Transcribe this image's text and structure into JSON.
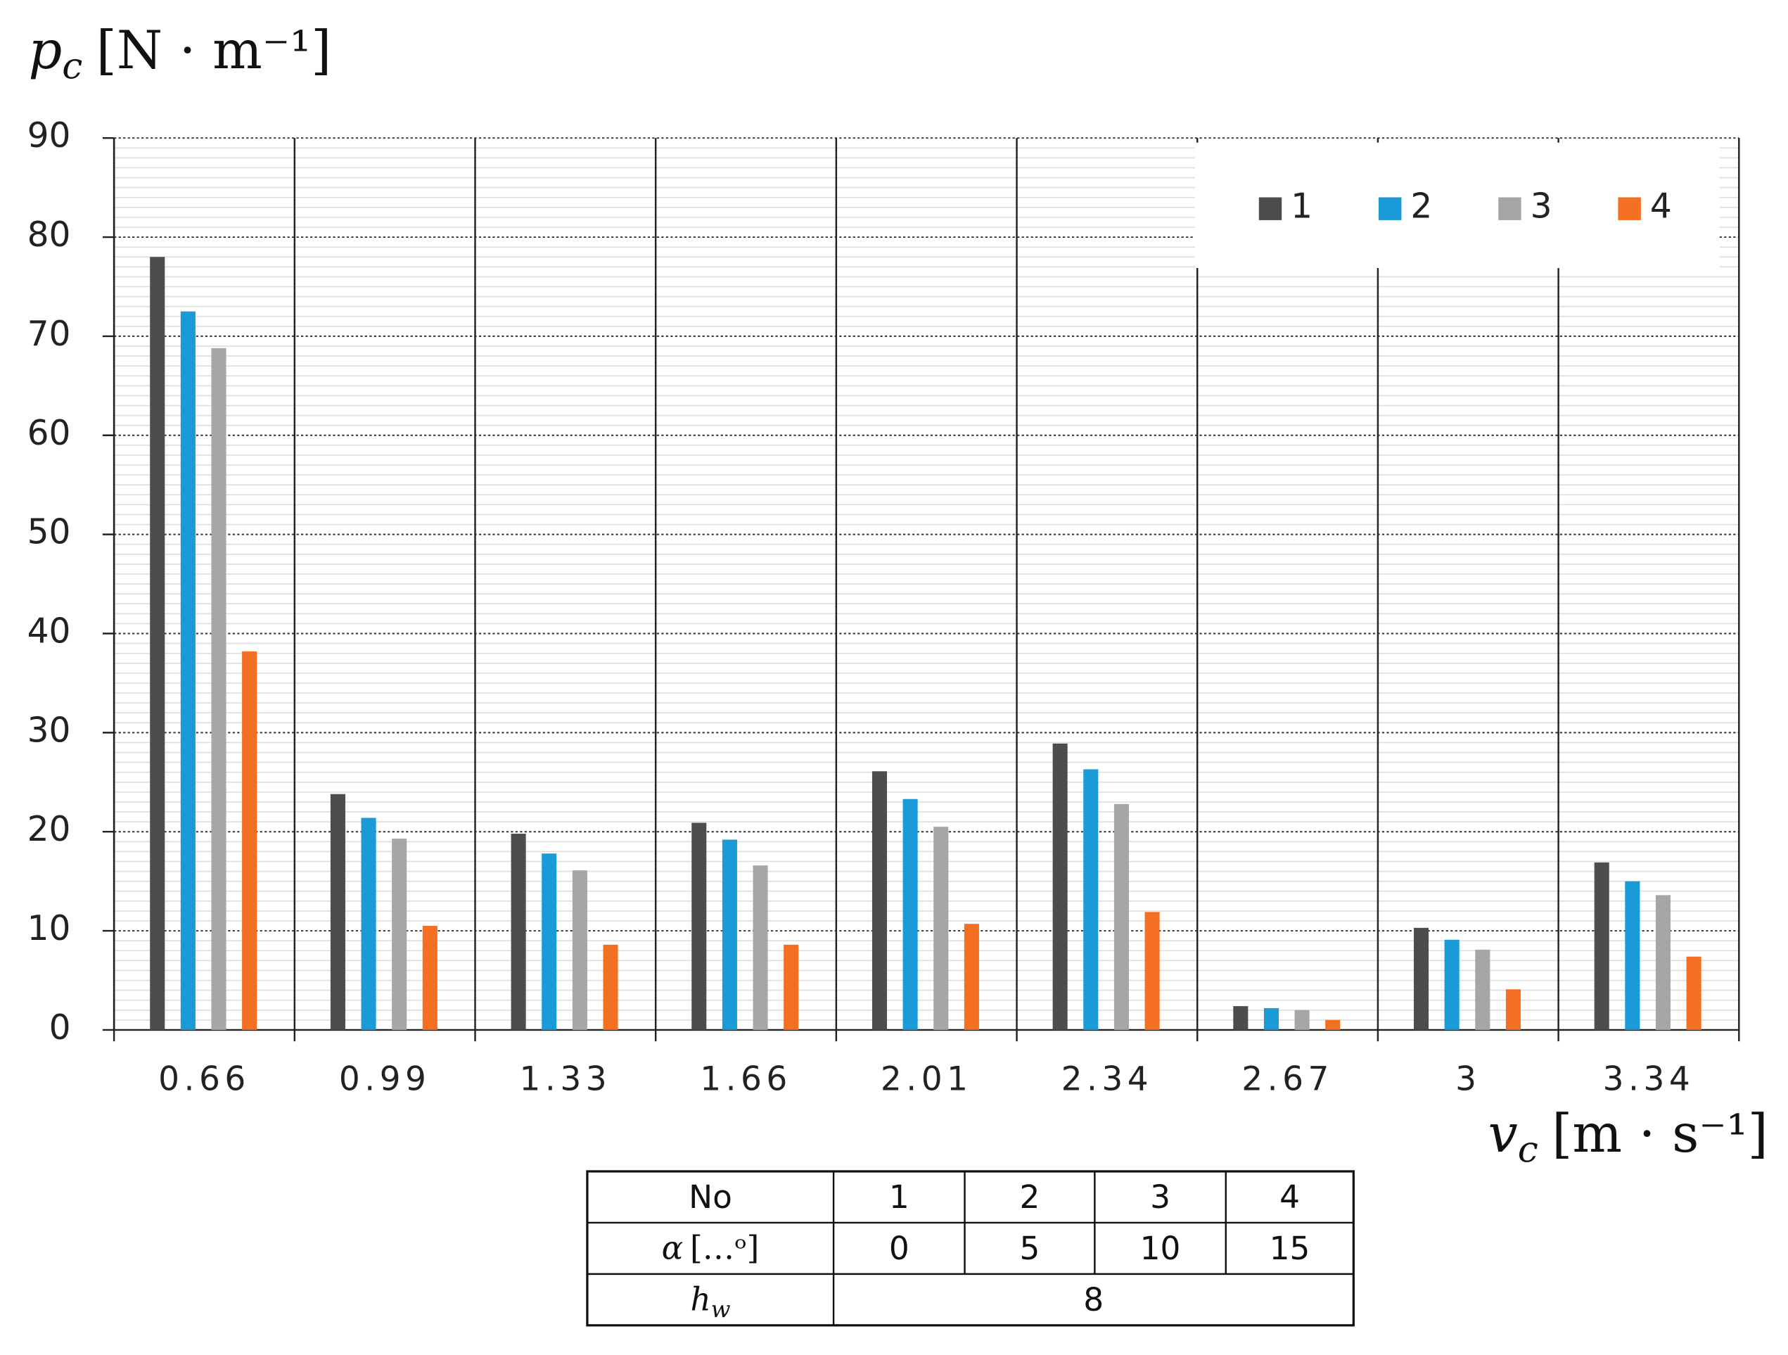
{
  "chart_data": {
    "type": "bar",
    "y_label": {
      "symbol": "p",
      "subscript": "c",
      "unit": "[N · m⁻¹]"
    },
    "x_label": {
      "symbol": "v",
      "subscript": "c",
      "unit": "[m · s⁻¹]"
    },
    "categories": [
      "0.66",
      "0.99",
      "1.33",
      "1.66",
      "2.01",
      "2.34",
      "2.67",
      "3",
      "3.34"
    ],
    "series": [
      {
        "name": "1",
        "color": "#4d4d4d",
        "values": [
          78,
          23.8,
          19.8,
          20.9,
          26.1,
          28.9,
          2.4,
          10.3,
          16.9
        ]
      },
      {
        "name": "2",
        "color": "#1a9ad6",
        "values": [
          72.5,
          21.4,
          17.8,
          19.2,
          23.3,
          26.3,
          2.2,
          9.1,
          15.0
        ]
      },
      {
        "name": "3",
        "color": "#a6a6a6",
        "values": [
          68.8,
          19.3,
          16.1,
          16.6,
          20.5,
          22.8,
          2.0,
          8.1,
          13.6
        ]
      },
      {
        "name": "4",
        "color": "#f36f21",
        "values": [
          38.2,
          10.5,
          8.6,
          8.6,
          10.7,
          11.9,
          1.0,
          4.1,
          7.4
        ]
      }
    ],
    "ylim": [
      0,
      90
    ],
    "yticks": [
      0,
      10,
      20,
      30,
      40,
      50,
      60,
      70,
      80,
      90
    ],
    "grid": true,
    "legend": "top-right"
  },
  "table": {
    "rows": [
      [
        "No",
        "1",
        "2",
        "3",
        "4"
      ],
      [
        {
          "symbol": "α",
          "unit": "[…ᵒ]"
        },
        "0",
        "5",
        "10",
        "15"
      ],
      [
        {
          "symbol": "h",
          "subscript": "w"
        },
        "8"
      ]
    ]
  }
}
